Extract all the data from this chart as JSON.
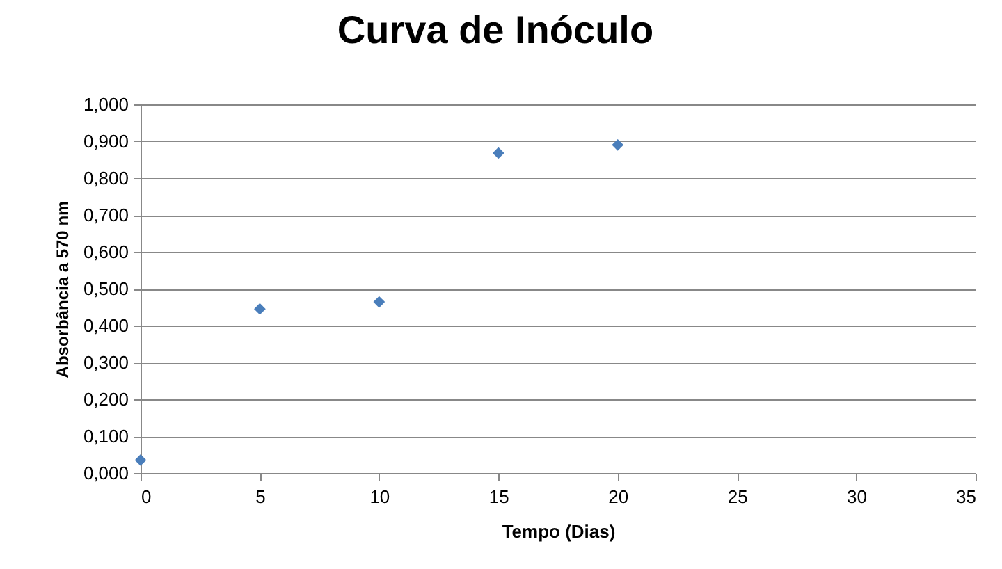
{
  "chart_data": {
    "type": "scatter",
    "title": "Curva de Inóculo",
    "xlabel": "Tempo (Dias)",
    "ylabel": "Absorbância a 570 nm",
    "x": [
      0,
      5,
      10,
      15,
      20
    ],
    "series": [
      {
        "color": "#4a7ebb",
        "values": [
          0.035,
          0.445,
          0.464,
          0.868,
          0.89
        ]
      }
    ],
    "xlim": [
      0,
      35
    ],
    "xticks": [
      0,
      5,
      10,
      15,
      20,
      25,
      30,
      35
    ],
    "ylim": [
      0,
      1
    ],
    "yticks": [
      {
        "value": 0,
        "label": "0,000"
      },
      {
        "value": 0.1,
        "label": "0,100"
      },
      {
        "value": 0.2,
        "label": "0,200"
      },
      {
        "value": 0.3,
        "label": "0,300"
      },
      {
        "value": 0.4,
        "label": "0,400"
      },
      {
        "value": 0.5,
        "label": "0,500"
      },
      {
        "value": 0.6,
        "label": "0,600"
      },
      {
        "value": 0.7,
        "label": "0,700"
      },
      {
        "value": 0.8,
        "label": "0,800"
      },
      {
        "value": 0.9,
        "label": "0,900"
      },
      {
        "value": 1,
        "label": "1,000"
      }
    ],
    "grid": "y",
    "marker": "diamond"
  }
}
